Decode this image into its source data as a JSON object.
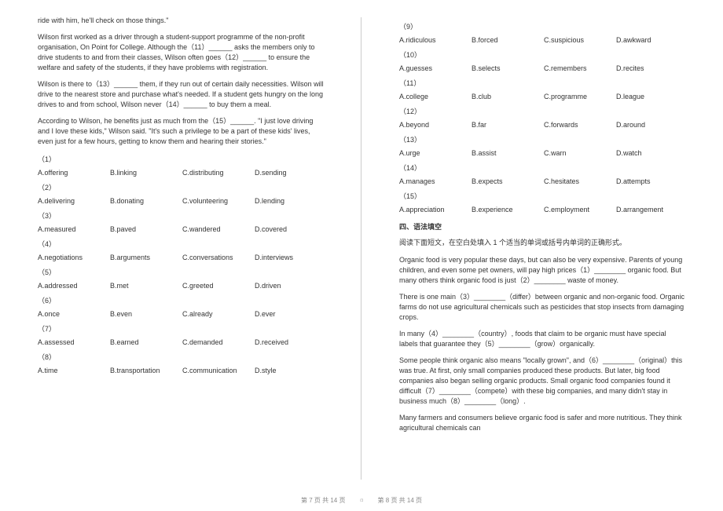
{
  "left": {
    "p1": "ride with him, he'll check on those things.\"",
    "p2": "Wilson first worked as a driver through a student-support programme of the non-profit organisation, On Point for College. Although the（11）______ asks the members only to drive students to and from their classes, Wilson often goes（12）______ to ensure the welfare and safety of the students, if they have problems with registration.",
    "p3": "Wilson is there to（13）______ them, if they run out of certain daily necessities. Wilson will drive to the nearest store and purchase what's needed. If a student gets hungry on the long drives to and from school, Wilson never（14）______ to buy them a meal.",
    "p4": "According to Wilson, he benefits just as much from the（15）______. \"I just love driving and I love these kids,\" Wilson said. \"It's such a privilege to be a part of these kids' lives, even just for a few hours, getting to know them and hearing their stories.\"",
    "q": [
      {
        "n": "（1）",
        "a": "A.offering",
        "b": "B.linking",
        "c": "C.distributing",
        "d": "D.sending"
      },
      {
        "n": "（2）",
        "a": "A.delivering",
        "b": "B.donating",
        "c": "C.volunteering",
        "d": "D.lending"
      },
      {
        "n": "（3）",
        "a": "A.measured",
        "b": "B.paved",
        "c": "C.wandered",
        "d": "D.covered"
      },
      {
        "n": "（4）",
        "a": "A.negotiations",
        "b": "B.arguments",
        "c": "C.conversations",
        "d": "D.interviews"
      },
      {
        "n": "（5）",
        "a": "A.addressed",
        "b": "B.met",
        "c": "C.greeted",
        "d": "D.driven"
      },
      {
        "n": "（6）",
        "a": "A.once",
        "b": "B.even",
        "c": "C.already",
        "d": "D.ever"
      },
      {
        "n": "（7）",
        "a": "A.assessed",
        "b": "B.earned",
        "c": "C.demanded",
        "d": "D.received"
      },
      {
        "n": "（8）",
        "a": "A.time",
        "b": "B.transportation",
        "c": "C.communication",
        "d": "D.style"
      }
    ]
  },
  "right": {
    "q": [
      {
        "n": "（9）",
        "a": "A.ridiculous",
        "b": "B.forced",
        "c": "C.suspicious",
        "d": "D.awkward"
      },
      {
        "n": "（10）",
        "a": "A.guesses",
        "b": "B.selects",
        "c": "C.remembers",
        "d": "D.recites"
      },
      {
        "n": "（11）",
        "a": "A.college",
        "b": "B.club",
        "c": "C.programme",
        "d": "D.league"
      },
      {
        "n": "（12）",
        "a": "A.beyond",
        "b": "B.far",
        "c": "C.forwards",
        "d": "D.around"
      },
      {
        "n": "（13）",
        "a": "A.urge",
        "b": "B.assist",
        "c": "C.warn",
        "d": "D.watch"
      },
      {
        "n": "（14）",
        "a": "A.manages",
        "b": "B.expects",
        "c": "C.hesitates",
        "d": "D.attempts"
      },
      {
        "n": "（15）",
        "a": "A.appreciation",
        "b": "B.experience",
        "c": "C.employment",
        "d": "D.arrangement"
      }
    ],
    "sect": "四、语法填空",
    "instr": "阅读下面短文，在空白处填入 1 个适当的单词或括号内单词的正确形式。",
    "g1": "Organic food is very popular these days, but can also be very expensive. Parents of young children, and even some pet owners, will pay high prices（1）________ organic food. But many others think organic food is just（2）________ waste of money.",
    "g2": "There is one main（3）________（differ）between organic and non-organic food. Organic farms do not use agricultural chemicals such as pesticides that stop insects from damaging crops.",
    "g3": "In many（4）________（country）, foods that claim to be organic must have special labels that guarantee they（5）________（grow）organically.",
    "g4": "Some people think organic also means \"locally grown\", and（6）________（original）this was true. At first, only small companies produced these products. But later, big food companies also began selling organic products. Small organic food companies found it difficult（7）________（compete）with these big companies, and many didn't stay in business much（8）________（long）.",
    "g5": "Many farmers and consumers believe organic food is safer and more nutritious. They think agricultural chemicals can"
  },
  "footL": "第 7 页 共 14 页",
  "footR": "第 8 页 共 14 页"
}
